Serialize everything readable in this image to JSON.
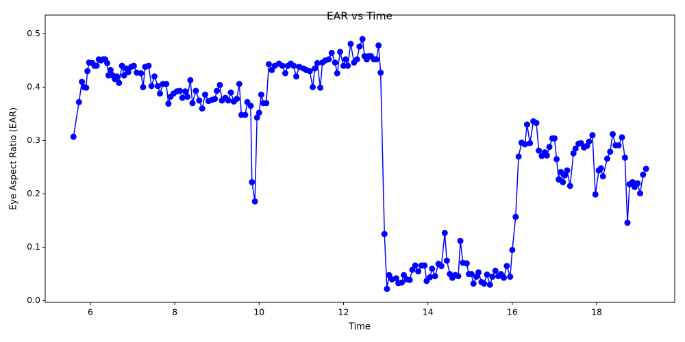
{
  "chart_data": {
    "type": "line",
    "title": "EAR vs Time",
    "x_label": "Time",
    "y_label": "Eye Aspect Ratio (EAR)",
    "x": [
      5.6,
      5.73,
      5.8,
      5.85,
      5.9,
      5.93,
      5.97,
      6.05,
      6.1,
      6.15,
      6.2,
      6.25,
      6.3,
      6.35,
      6.4,
      6.43,
      6.48,
      6.53,
      6.58,
      6.63,
      6.68,
      6.75,
      6.8,
      6.85,
      6.9,
      6.97,
      7.03,
      7.1,
      7.2,
      7.25,
      7.3,
      7.38,
      7.45,
      7.52,
      7.6,
      7.65,
      7.72,
      7.8,
      7.85,
      7.9,
      7.97,
      8.05,
      8.12,
      8.18,
      8.25,
      8.3,
      8.37,
      8.42,
      8.5,
      8.58,
      8.65,
      8.72,
      8.8,
      8.88,
      8.95,
      9.0,
      9.07,
      9.12,
      9.2,
      9.27,
      9.33,
      9.4,
      9.47,
      9.53,
      9.58,
      9.67,
      9.72,
      9.8,
      9.83,
      9.9,
      9.95,
      10.0,
      10.05,
      10.1,
      10.17,
      10.23,
      10.3,
      10.37,
      10.47,
      10.55,
      10.62,
      10.68,
      10.75,
      10.82,
      10.88,
      10.95,
      11.05,
      11.12,
      11.2,
      11.27,
      11.32,
      11.38,
      11.45,
      11.5,
      11.57,
      11.65,
      11.72,
      11.8,
      11.85,
      11.92,
      12.0,
      12.05,
      12.1,
      12.17,
      12.25,
      12.32,
      12.38,
      12.45,
      12.5,
      12.55,
      12.6,
      12.65,
      12.72,
      12.78,
      12.83,
      12.88,
      12.97,
      13.03,
      13.08,
      13.15,
      13.25,
      13.3,
      13.38,
      13.43,
      13.5,
      13.57,
      13.63,
      13.7,
      13.77,
      13.85,
      13.92,
      13.97,
      14.05,
      14.1,
      14.17,
      14.25,
      14.32,
      14.4,
      14.45,
      14.52,
      14.58,
      14.65,
      14.72,
      14.77,
      14.83,
      14.92,
      14.97,
      15.03,
      15.08,
      15.15,
      15.2,
      15.27,
      15.33,
      15.4,
      15.47,
      15.53,
      15.6,
      15.67,
      15.73,
      15.8,
      15.87,
      15.95,
      16.0,
      16.08,
      16.15,
      16.22,
      16.3,
      16.35,
      16.42,
      16.5,
      16.57,
      16.63,
      16.7,
      16.77,
      16.82,
      16.88,
      16.95,
      17.0,
      17.05,
      17.1,
      17.15,
      17.2,
      17.25,
      17.3,
      17.37,
      17.45,
      17.5,
      17.57,
      17.63,
      17.7,
      17.77,
      17.82,
      17.9,
      17.97,
      18.05,
      18.1,
      18.15,
      18.25,
      18.32,
      18.38,
      18.45,
      18.52,
      18.6,
      18.67,
      18.73,
      18.78,
      18.85,
      18.9,
      18.97,
      19.03,
      19.1,
      19.17
    ],
    "series": [
      {
        "name": "EAR",
        "color": "#0000ff",
        "values": [
          0.307,
          0.372,
          0.41,
          0.4,
          0.399,
          0.43,
          0.446,
          0.445,
          0.44,
          0.44,
          0.452,
          0.45,
          0.452,
          0.452,
          0.445,
          0.422,
          0.432,
          0.422,
          0.415,
          0.42,
          0.408,
          0.44,
          0.422,
          0.435,
          0.428,
          0.438,
          0.44,
          0.427,
          0.426,
          0.4,
          0.438,
          0.44,
          0.402,
          0.42,
          0.402,
          0.388,
          0.406,
          0.406,
          0.369,
          0.382,
          0.388,
          0.392,
          0.393,
          0.38,
          0.392,
          0.382,
          0.413,
          0.37,
          0.393,
          0.375,
          0.36,
          0.386,
          0.374,
          0.376,
          0.378,
          0.393,
          0.404,
          0.375,
          0.38,
          0.375,
          0.39,
          0.373,
          0.378,
          0.406,
          0.348,
          0.348,
          0.372,
          0.365,
          0.222,
          0.186,
          0.343,
          0.352,
          0.386,
          0.37,
          0.37,
          0.443,
          0.432,
          0.44,
          0.444,
          0.44,
          0.426,
          0.44,
          0.444,
          0.44,
          0.42,
          0.438,
          0.435,
          0.432,
          0.43,
          0.4,
          0.435,
          0.445,
          0.399,
          0.446,
          0.45,
          0.452,
          0.464,
          0.446,
          0.426,
          0.466,
          0.44,
          0.452,
          0.44,
          0.481,
          0.446,
          0.452,
          0.476,
          0.49,
          0.458,
          0.452,
          0.458,
          0.458,
          0.452,
          0.452,
          0.478,
          0.427,
          0.125,
          0.022,
          0.048,
          0.04,
          0.042,
          0.033,
          0.034,
          0.048,
          0.04,
          0.039,
          0.058,
          0.066,
          0.055,
          0.066,
          0.066,
          0.037,
          0.044,
          0.06,
          0.046,
          0.069,
          0.065,
          0.127,
          0.075,
          0.05,
          0.043,
          0.048,
          0.046,
          0.112,
          0.071,
          0.07,
          0.05,
          0.05,
          0.032,
          0.045,
          0.053,
          0.035,
          0.032,
          0.049,
          0.03,
          0.045,
          0.056,
          0.046,
          0.05,
          0.043,
          0.065,
          0.045,
          0.095,
          0.157,
          0.27,
          0.296,
          0.293,
          0.33,
          0.295,
          0.336,
          0.333,
          0.281,
          0.271,
          0.278,
          0.272,
          0.288,
          0.304,
          0.304,
          0.265,
          0.227,
          0.241,
          0.222,
          0.235,
          0.244,
          0.215,
          0.276,
          0.285,
          0.294,
          0.295,
          0.287,
          0.29,
          0.298,
          0.31,
          0.199,
          0.244,
          0.248,
          0.233,
          0.266,
          0.279,
          0.312,
          0.291,
          0.291,
          0.306,
          0.268,
          0.146,
          0.218,
          0.222,
          0.213,
          0.22,
          0.201,
          0.236,
          0.247
        ]
      }
    ],
    "xlim": [
      4.93,
      19.85
    ],
    "ylim": [
      -0.003,
      0.535
    ],
    "xticks": [
      6,
      8,
      10,
      12,
      14,
      16,
      18
    ],
    "yticks": [
      {
        "value": 0,
        "label": "0.0"
      },
      0.1,
      0.2,
      0.3,
      0.4,
      0.5
    ],
    "grid": false
  }
}
